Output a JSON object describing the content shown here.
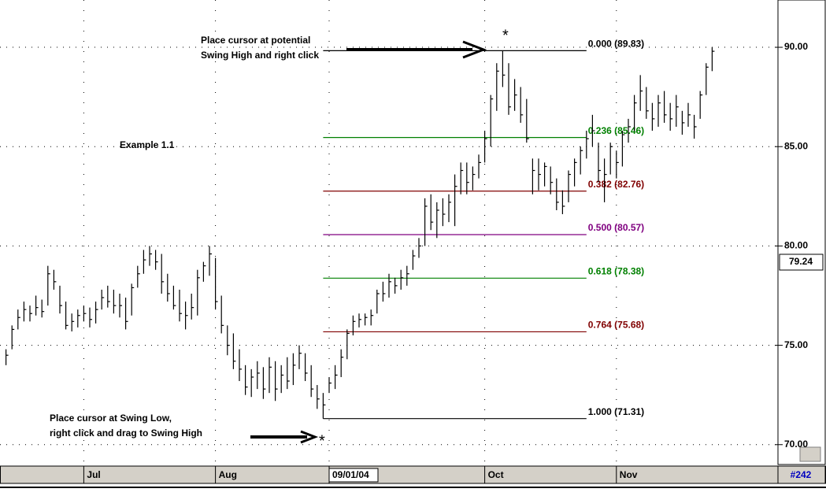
{
  "chart_data": {
    "type": "ohlc",
    "title": "Example 1.1",
    "annotations": {
      "top": [
        "Place cursor at potential",
        "Swing High and right click"
      ],
      "bottom": [
        "Place cursor at Swing Low,",
        "right click and drag to Swing High"
      ],
      "marker": "*"
    },
    "high": [
      74.8,
      76.0,
      76.8,
      77.2,
      77.0,
      77.5,
      77.3,
      79.0,
      78.8,
      78.0,
      77.2,
      76.6,
      76.8,
      77.0,
      76.9,
      77.2,
      77.8,
      78.0,
      77.8,
      77.6,
      77.4,
      78.1,
      79.0,
      79.8,
      80.0,
      79.8,
      79.6,
      78.6,
      78.0,
      77.8,
      77.2,
      77.6,
      78.8,
      79.2,
      80.0,
      79.4,
      77.5,
      76.0,
      75.6,
      74.8,
      74.0,
      73.8,
      74.2,
      73.9,
      74.4,
      74.2,
      74.0,
      74.4,
      74.6,
      75.0,
      74.6,
      74.0,
      73.0,
      72.6,
      73.4,
      74.0,
      74.8,
      75.8,
      76.5,
      76.6,
      76.6,
      76.8,
      77.8,
      78.2,
      78.6,
      78.4,
      78.8,
      79.0,
      79.8,
      80.4,
      82.4,
      82.6,
      82.2,
      82.4,
      82.6,
      83.6,
      84.2,
      84.2,
      84.0,
      84.6,
      85.8,
      87.6,
      89.2,
      89.83,
      89.2,
      88.4,
      88.0,
      87.4,
      84.4,
      84.4,
      84.2,
      84.0,
      83.4,
      82.8,
      83.8,
      84.4,
      85.0,
      85.8,
      86.6,
      85.2,
      84.4,
      85.2,
      84.8,
      85.8,
      86.4,
      87.6,
      88.6,
      88.0,
      87.2,
      87.6,
      87.8,
      87.2,
      87.6,
      86.8,
      87.2,
      86.6,
      87.8,
      89.2,
      90.0
    ],
    "low": [
      74.0,
      74.8,
      75.8,
      76.2,
      76.2,
      76.5,
      76.4,
      77.0,
      77.8,
      76.6,
      75.8,
      75.7,
      75.9,
      76.2,
      75.9,
      76.1,
      76.8,
      76.9,
      76.6,
      76.4,
      75.8,
      76.5,
      77.9,
      78.6,
      79.0,
      78.8,
      77.6,
      77.2,
      76.8,
      76.2,
      75.8,
      76.3,
      76.5,
      78.2,
      78.5,
      76.8,
      75.6,
      74.5,
      73.8,
      73.2,
      72.5,
      72.4,
      72.8,
      72.3,
      72.6,
      72.2,
      72.6,
      72.8,
      73.0,
      73.8,
      73.2,
      72.4,
      71.8,
      71.31,
      72.6,
      72.8,
      73.4,
      74.3,
      75.5,
      75.9,
      76.0,
      76.0,
      76.6,
      77.2,
      77.4,
      77.6,
      77.8,
      78.0,
      78.8,
      79.4,
      80.0,
      80.8,
      80.4,
      81.0,
      81.2,
      81.0,
      82.6,
      82.6,
      82.8,
      83.4,
      84.2,
      85.0,
      86.8,
      88.0,
      86.6,
      86.8,
      86.2,
      85.2,
      82.6,
      82.8,
      83.0,
      82.6,
      81.8,
      81.6,
      82.2,
      83.0,
      83.6,
      84.4,
      85.0,
      83.2,
      82.2,
      83.6,
      83.4,
      84.0,
      85.2,
      85.8,
      86.8,
      86.4,
      85.8,
      86.0,
      86.2,
      85.8,
      86.0,
      85.6,
      86.0,
      85.4,
      86.4,
      87.6,
      88.8
    ],
    "close": [
      74.5,
      75.8,
      76.4,
      76.8,
      76.6,
      76.9,
      76.7,
      78.6,
      78.2,
      77.0,
      76.0,
      76.2,
      76.5,
      76.6,
      76.3,
      76.8,
      77.4,
      77.2,
      77.0,
      77.0,
      76.2,
      77.9,
      78.6,
      79.3,
      79.6,
      79.2,
      78.2,
      77.6,
      77.0,
      76.6,
      76.5,
      76.9,
      78.4,
      79.0,
      79.6,
      77.2,
      76.0,
      75.0,
      74.2,
      73.8,
      72.9,
      73.4,
      73.6,
      72.8,
      73.9,
      72.8,
      73.5,
      73.2,
      74.0,
      74.6,
      73.6,
      72.8,
      72.3,
      72.0,
      73.1,
      73.5,
      74.4,
      75.6,
      76.2,
      76.3,
      76.4,
      76.5,
      77.6,
      77.6,
      78.2,
      78.0,
      78.4,
      78.6,
      79.5,
      80.0,
      82.0,
      81.2,
      81.8,
      81.6,
      82.2,
      83.0,
      83.8,
      83.2,
      83.6,
      84.2,
      85.4,
      87.4,
      88.8,
      88.6,
      87.0,
      87.6,
      86.6,
      85.4,
      83.8,
      83.6,
      84.0,
      83.2,
      82.2,
      82.0,
      83.6,
      84.2,
      84.8,
      85.4,
      85.8,
      83.8,
      83.6,
      85.0,
      84.2,
      85.6,
      86.0,
      87.2,
      87.8,
      86.8,
      86.4,
      87.2,
      86.6,
      86.4,
      87.0,
      86.2,
      86.6,
      86.0,
      87.6,
      89.0,
      89.8
    ],
    "color": "#000000",
    "xlim": [
      -1,
      129
    ],
    "xticks": [
      {
        "value": 13,
        "label": "Jul"
      },
      {
        "value": 35,
        "label": "Aug"
      },
      {
        "value": 80,
        "label": "Oct"
      },
      {
        "value": 102,
        "label": "Nov"
      }
    ],
    "cursor_date": {
      "value": 54,
      "label": "09/01/04"
    },
    "ylim": [
      69.0,
      92.38
    ],
    "yticks": [
      {
        "value": 90,
        "label": "90.00"
      },
      {
        "value": 85,
        "label": "85.00"
      },
      {
        "value": 80,
        "label": "80.00"
      },
      {
        "value": 75,
        "label": "75.00"
      },
      {
        "value": 70,
        "label": "70.00"
      }
    ],
    "last_price": 79.24,
    "chart_id": "#242",
    "grid": true,
    "fib": {
      "x_start": 53,
      "x_end": 97,
      "levels": [
        {
          "label": "0.000 (89.83)",
          "value": 89.83,
          "color": "#000000"
        },
        {
          "label": "0.236 (85.46)",
          "value": 85.46,
          "color": "#008000"
        },
        {
          "label": "0.382 (82.76)",
          "value": 82.76,
          "color": "#800000"
        },
        {
          "label": "0.500 (80.57)",
          "value": 80.57,
          "color": "#800080"
        },
        {
          "label": "0.618 (78.38)",
          "value": 78.38,
          "color": "#008000"
        },
        {
          "label": "0.764 (75.68)",
          "value": 75.68,
          "color": "#800000"
        },
        {
          "label": "1.000 (71.31)",
          "value": 71.31,
          "color": "#000000"
        }
      ]
    }
  }
}
